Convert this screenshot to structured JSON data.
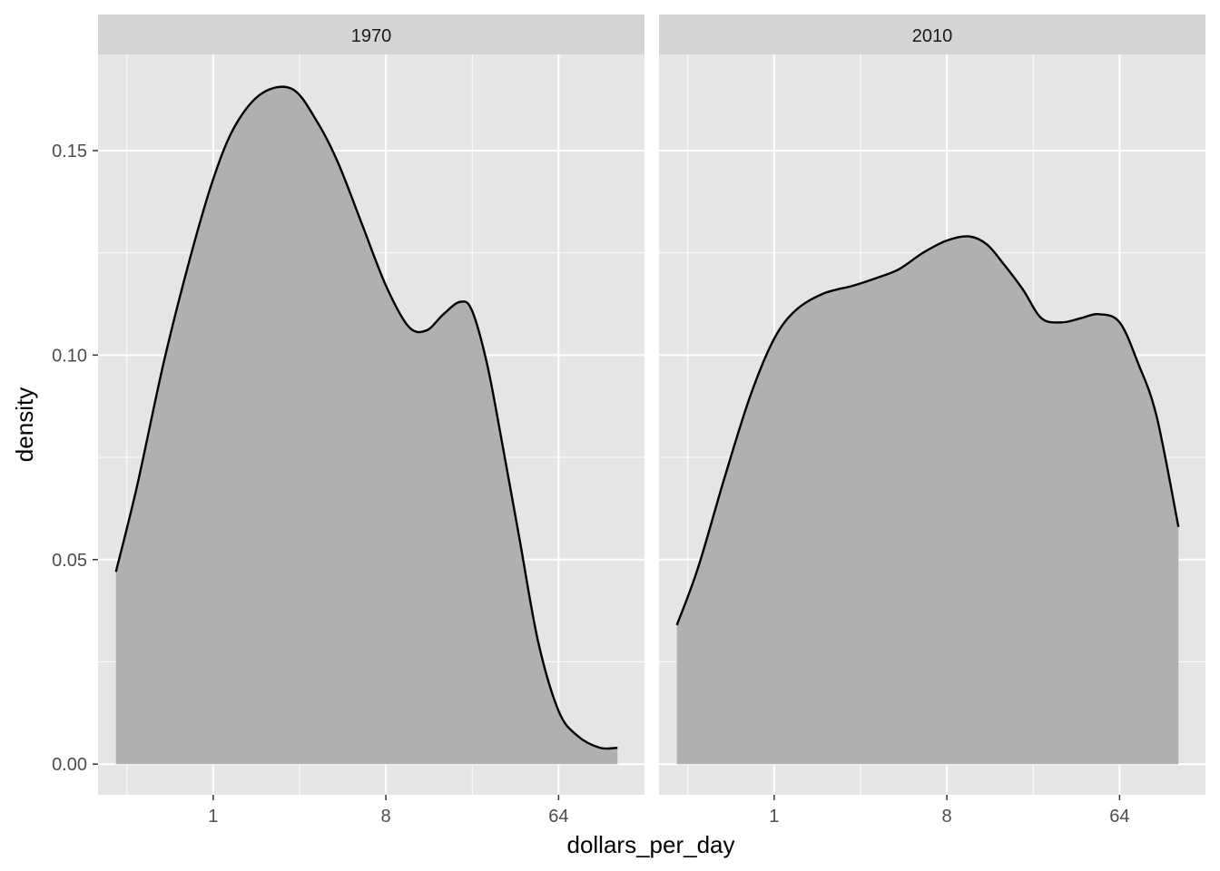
{
  "chart_data": {
    "type": "area",
    "xlabel": "dollars_per_day",
    "ylabel": "density",
    "x_scale": "log2",
    "xlim": [
      0.25,
      180
    ],
    "ylim": [
      -0.0075,
      0.1735
    ],
    "x_ticks": [
      1,
      8,
      64
    ],
    "x_tick_labels": [
      "1",
      "8",
      "64"
    ],
    "y_ticks": [
      0,
      0.05,
      0.1,
      0.15
    ],
    "y_tick_labels": [
      "0.00",
      "0.05",
      "0.10",
      "0.15"
    ],
    "grid": true,
    "legend": "none",
    "colors": {
      "panel_bg": "#e5e5e5",
      "strip_bg": "#d4d4d4",
      "grid": "#ffffff",
      "fill": "#b0b0b0",
      "line": "#000000"
    },
    "series": [
      {
        "name": "1970",
        "x": [
          0.31,
          0.4,
          0.55,
          0.75,
          1.0,
          1.3,
          1.8,
          2.6,
          3.5,
          4.5,
          6.0,
          8.0,
          10.5,
          13.0,
          16.0,
          19.5,
          22.5,
          27.0,
          32.0,
          40.0,
          50.0,
          64.0,
          80.0,
          105.0,
          130.0
        ],
        "y": [
          0.047,
          0.068,
          0.098,
          0.123,
          0.143,
          0.156,
          0.164,
          0.165,
          0.157,
          0.147,
          0.132,
          0.117,
          0.107,
          0.106,
          0.11,
          0.113,
          0.111,
          0.098,
          0.08,
          0.055,
          0.03,
          0.013,
          0.007,
          0.004,
          0.004
        ]
      },
      {
        "name": "2010",
        "x": [
          0.31,
          0.4,
          0.55,
          0.75,
          1.0,
          1.3,
          1.8,
          2.6,
          3.5,
          4.5,
          6.0,
          8.0,
          10.5,
          13.0,
          16.0,
          20.0,
          25.0,
          32.0,
          40.0,
          50.0,
          64.0,
          80.0,
          100.0,
          130.0
        ],
        "y": [
          0.034,
          0.048,
          0.07,
          0.09,
          0.104,
          0.111,
          0.115,
          0.117,
          0.119,
          0.121,
          0.125,
          0.128,
          0.129,
          0.127,
          0.122,
          0.116,
          0.109,
          0.108,
          0.109,
          0.11,
          0.108,
          0.098,
          0.085,
          0.058
        ]
      }
    ]
  }
}
